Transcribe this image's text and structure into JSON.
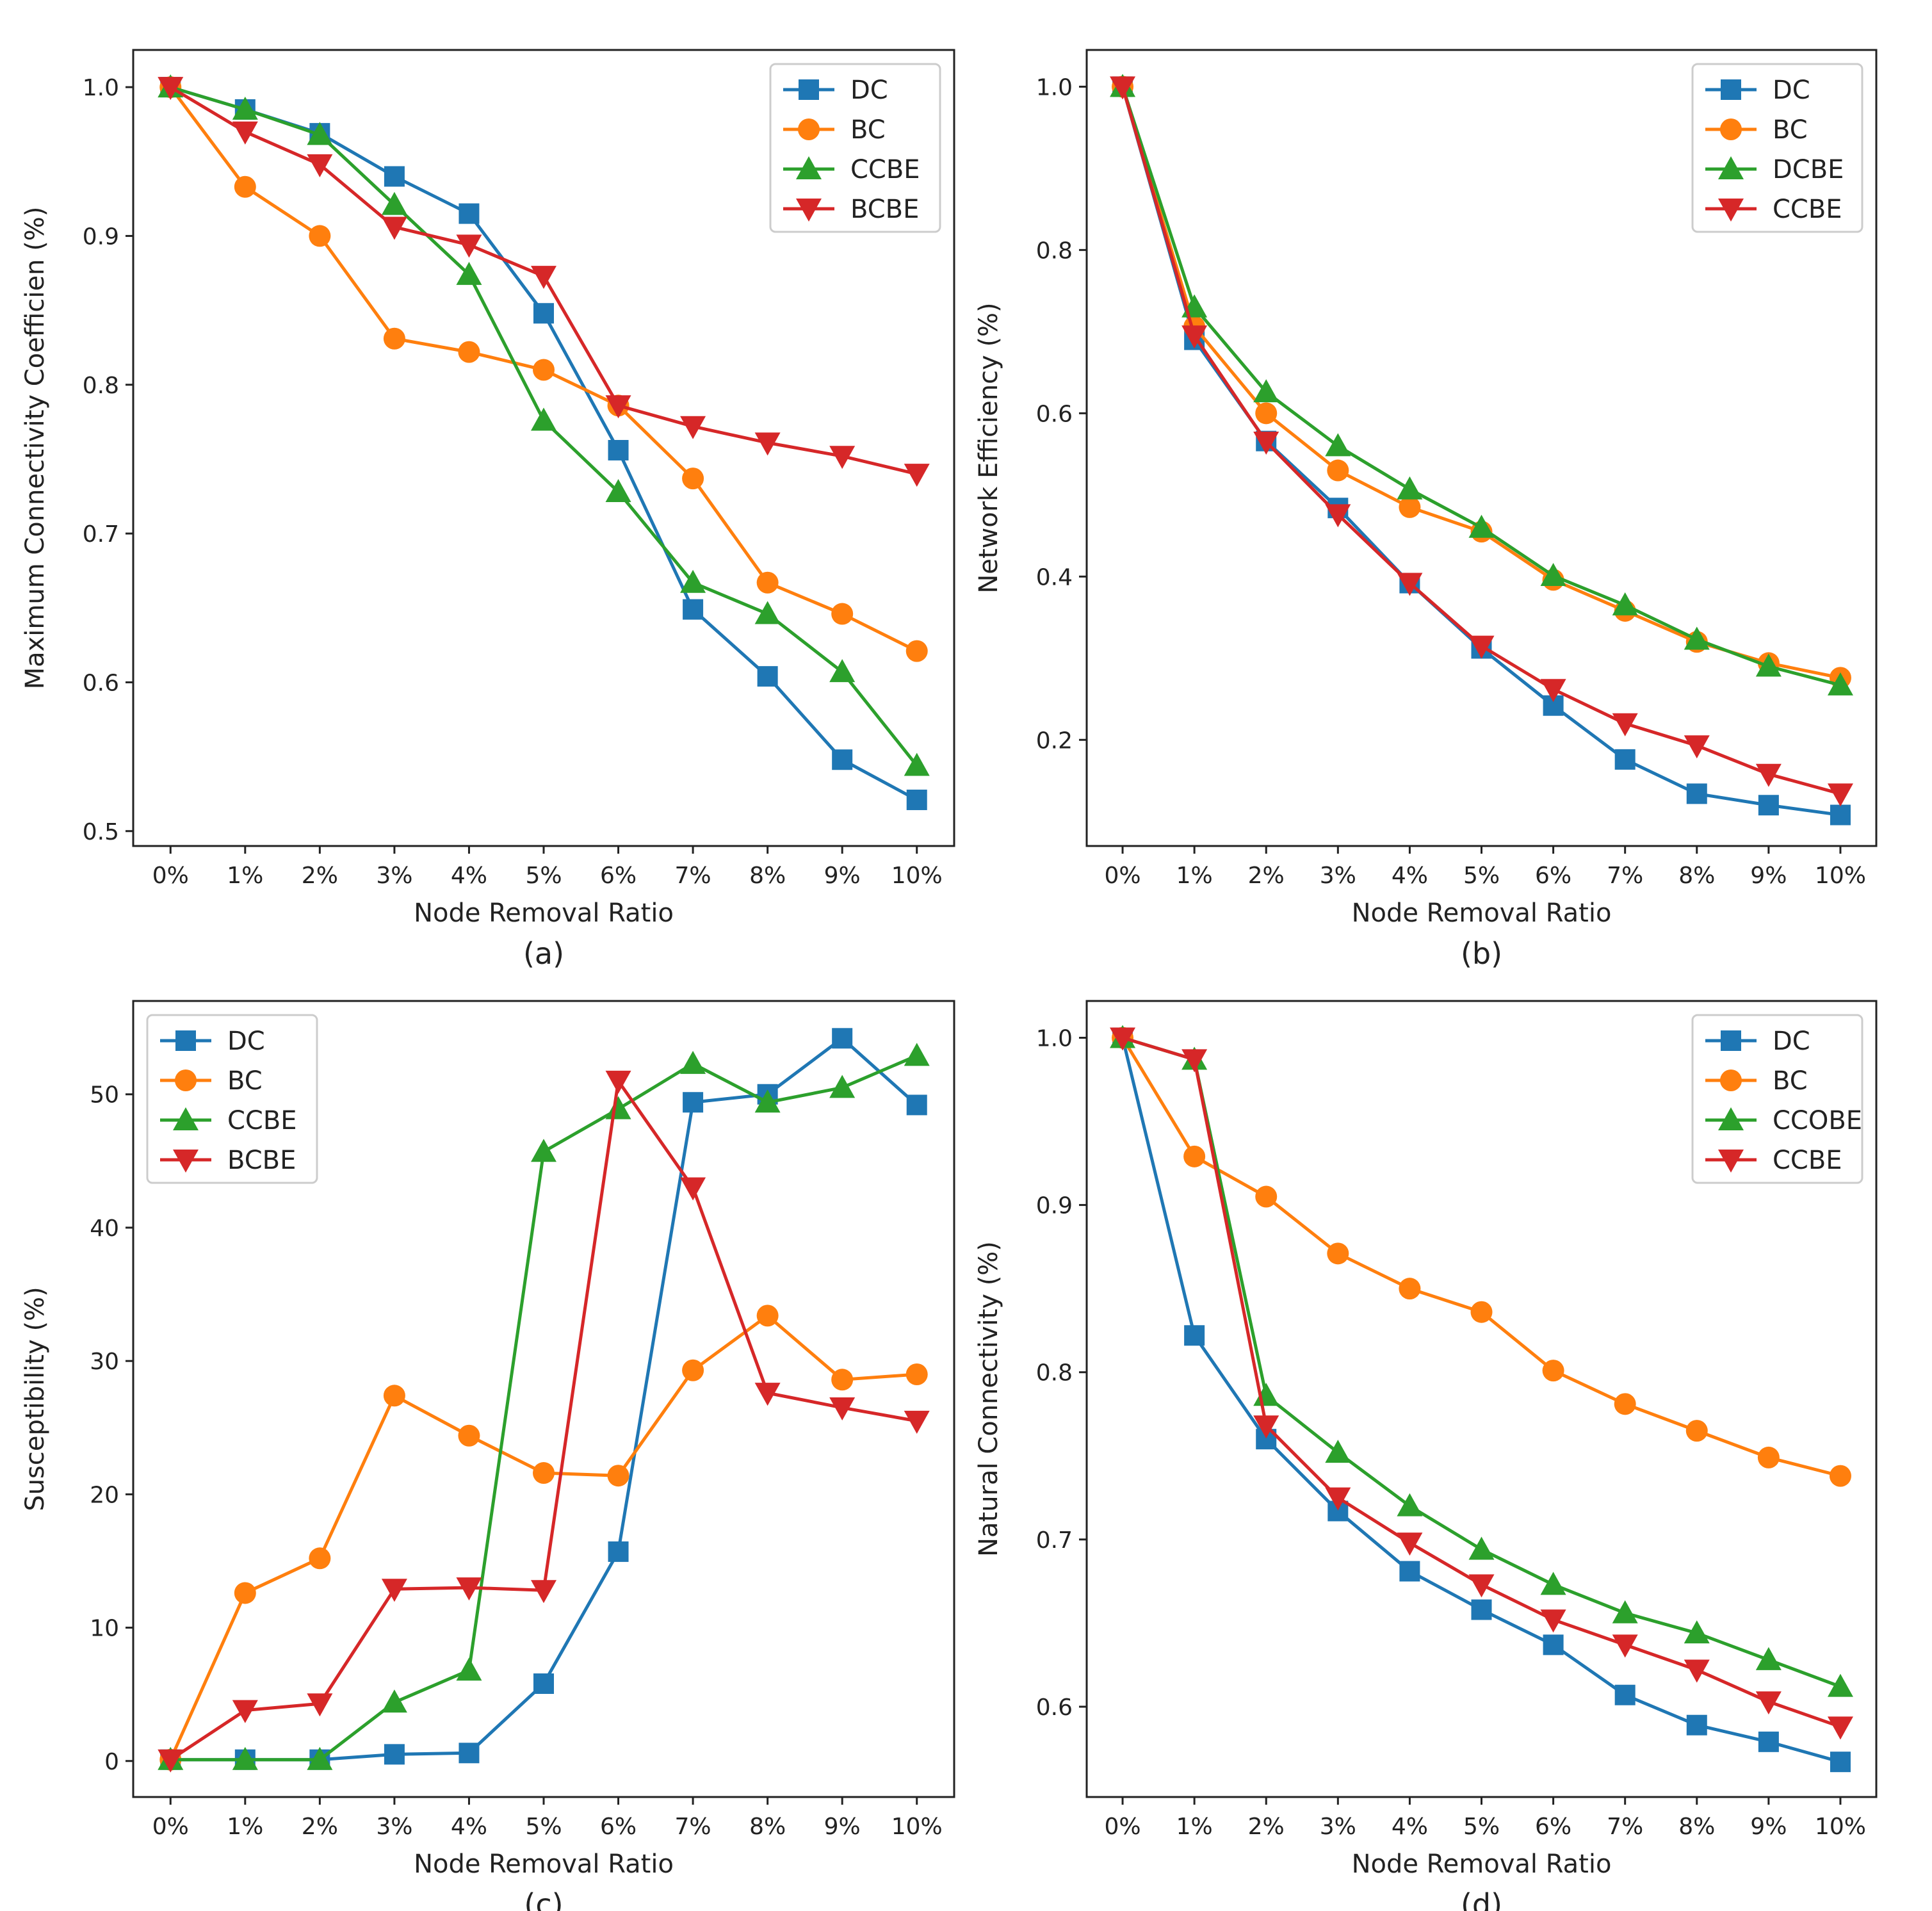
{
  "colors": {
    "DC": "#1f77b4",
    "BC": "#ff7f0e",
    "green": "#2ca02c",
    "red": "#d62728"
  },
  "chart_data": [
    {
      "type": "line",
      "caption": "(a)",
      "xlabel": "Node Removal Ratio",
      "ylabel": "Maximum Connectivity Coefficien (%)",
      "categories": [
        "0%",
        "1%",
        "2%",
        "3%",
        "4%",
        "5%",
        "6%",
        "7%",
        "8%",
        "9%",
        "10%"
      ],
      "ylim": [
        0.49,
        1.025
      ],
      "yticks": [
        0.5,
        0.6,
        0.7,
        0.8,
        0.9,
        1.0
      ],
      "ytick_labels": [
        "0.5",
        "0.6",
        "0.7",
        "0.8",
        "0.9",
        "1.0"
      ],
      "legend_position": "top-right",
      "series": [
        {
          "name": "DC",
          "marker": "square",
          "color": "#1f77b4",
          "values": [
            1.0,
            0.985,
            0.969,
            0.94,
            0.915,
            0.848,
            0.756,
            0.649,
            0.604,
            0.548,
            0.521
          ]
        },
        {
          "name": "BC",
          "marker": "circle",
          "color": "#ff7f0e",
          "values": [
            1.0,
            0.933,
            0.9,
            0.831,
            0.822,
            0.81,
            0.786,
            0.737,
            0.667,
            0.646,
            0.621
          ]
        },
        {
          "name": "CCBE",
          "marker": "triangle-up",
          "color": "#2ca02c",
          "values": [
            1.0,
            0.985,
            0.968,
            0.921,
            0.874,
            0.776,
            0.728,
            0.667,
            0.646,
            0.607,
            0.544
          ]
        },
        {
          "name": "BCBE",
          "marker": "triangle-down",
          "color": "#d62728",
          "values": [
            1.0,
            0.97,
            0.948,
            0.906,
            0.894,
            0.873,
            0.786,
            0.772,
            0.761,
            0.752,
            0.74
          ]
        }
      ]
    },
    {
      "type": "line",
      "caption": "(b)",
      "xlabel": "Node Removal Ratio",
      "ylabel": "Network Efficiency (%)",
      "categories": [
        "0%",
        "1%",
        "2%",
        "3%",
        "4%",
        "5%",
        "6%",
        "7%",
        "8%",
        "9%",
        "10%"
      ],
      "ylim": [
        0.07,
        1.045
      ],
      "yticks": [
        0.2,
        0.4,
        0.6,
        0.8,
        1.0
      ],
      "ytick_labels": [
        "0.2",
        "0.4",
        "0.6",
        "0.8",
        "1.0"
      ],
      "legend_position": "top-right",
      "series": [
        {
          "name": "DC",
          "marker": "square",
          "color": "#1f77b4",
          "values": [
            1.0,
            0.69,
            0.566,
            0.484,
            0.392,
            0.312,
            0.242,
            0.176,
            0.134,
            0.12,
            0.108
          ]
        },
        {
          "name": "BC",
          "marker": "circle",
          "color": "#ff7f0e",
          "values": [
            1.0,
            0.706,
            0.6,
            0.53,
            0.485,
            0.455,
            0.396,
            0.358,
            0.32,
            0.294,
            0.276
          ]
        },
        {
          "name": "DCBE",
          "marker": "triangle-up",
          "color": "#2ca02c",
          "values": [
            1.0,
            0.73,
            0.626,
            0.56,
            0.507,
            0.46,
            0.401,
            0.365,
            0.323,
            0.29,
            0.267
          ]
        },
        {
          "name": "CCBE",
          "marker": "triangle-down",
          "color": "#d62728",
          "values": [
            1.0,
            0.695,
            0.565,
            0.476,
            0.392,
            0.315,
            0.262,
            0.22,
            0.193,
            0.158,
            0.134
          ]
        }
      ]
    },
    {
      "type": "line",
      "caption": "(c)",
      "xlabel": "Node Removal Ratio",
      "ylabel": "Susceptibility (%)",
      "categories": [
        "0%",
        "1%",
        "2%",
        "3%",
        "4%",
        "5%",
        "6%",
        "7%",
        "8%",
        "9%",
        "10%"
      ],
      "ylim": [
        -2.7,
        57.0
      ],
      "yticks": [
        0,
        10,
        20,
        30,
        40,
        50
      ],
      "ytick_labels": [
        "0",
        "10",
        "20",
        "30",
        "40",
        "50"
      ],
      "legend_position": "top-left",
      "series": [
        {
          "name": "DC",
          "marker": "square",
          "color": "#1f77b4",
          "values": [
            0.1,
            0.1,
            0.1,
            0.5,
            0.6,
            5.8,
            15.7,
            49.4,
            50.0,
            54.2,
            49.2
          ]
        },
        {
          "name": "BC",
          "marker": "circle",
          "color": "#ff7f0e",
          "values": [
            0.1,
            12.6,
            15.2,
            27.4,
            24.4,
            21.6,
            21.4,
            29.3,
            33.4,
            28.6,
            29.0
          ]
        },
        {
          "name": "CCBE",
          "marker": "triangle-up",
          "color": "#2ca02c",
          "values": [
            0.1,
            0.1,
            0.1,
            4.4,
            6.8,
            45.7,
            48.9,
            52.3,
            49.4,
            50.5,
            52.9
          ]
        },
        {
          "name": "BCBE",
          "marker": "triangle-down",
          "color": "#d62728",
          "values": [
            0.1,
            3.8,
            4.3,
            12.9,
            13.0,
            12.8,
            51.0,
            43.0,
            27.6,
            26.5,
            25.5
          ]
        }
      ]
    },
    {
      "type": "line",
      "caption": "(d)",
      "xlabel": "Node Removal Ratio",
      "ylabel": "Natural Connectivity (%)",
      "categories": [
        "0%",
        "1%",
        "2%",
        "3%",
        "4%",
        "5%",
        "6%",
        "7%",
        "8%",
        "9%",
        "10%"
      ],
      "ylim": [
        0.546,
        1.022
      ],
      "yticks": [
        0.6,
        0.7,
        0.8,
        0.9,
        1.0
      ],
      "ytick_labels": [
        "0.6",
        "0.7",
        "0.8",
        "0.9",
        "1.0"
      ],
      "legend_position": "top-right",
      "series": [
        {
          "name": "DC",
          "marker": "square",
          "color": "#1f77b4",
          "values": [
            1.0,
            0.822,
            0.76,
            0.717,
            0.681,
            0.658,
            0.637,
            0.607,
            0.589,
            0.579,
            0.567
          ]
        },
        {
          "name": "BC",
          "marker": "circle",
          "color": "#ff7f0e",
          "values": [
            1.0,
            0.929,
            0.905,
            0.871,
            0.85,
            0.836,
            0.801,
            0.781,
            0.765,
            0.749,
            0.738
          ]
        },
        {
          "name": "CCOBE",
          "marker": "triangle-up",
          "color": "#2ca02c",
          "values": [
            1.0,
            0.987,
            0.786,
            0.752,
            0.72,
            0.694,
            0.673,
            0.656,
            0.644,
            0.628,
            0.612
          ]
        },
        {
          "name": "CCBE",
          "marker": "triangle-down",
          "color": "#d62728",
          "values": [
            1.0,
            0.987,
            0.768,
            0.725,
            0.698,
            0.673,
            0.652,
            0.637,
            0.622,
            0.603,
            0.588
          ]
        }
      ]
    }
  ]
}
